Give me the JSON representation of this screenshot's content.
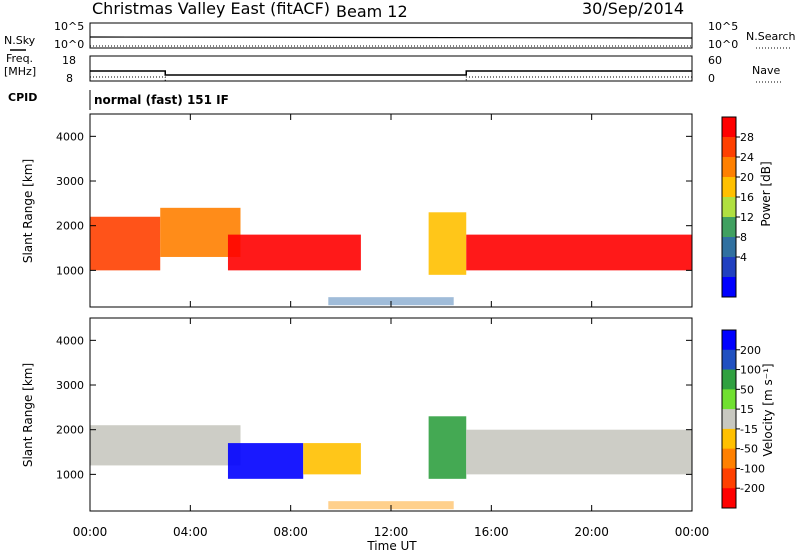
{
  "header": {
    "title": "Christmas Valley East (fitACF)",
    "beam": "Beam 12",
    "date": "30/Sep/2014"
  },
  "strips": {
    "nsky_label": "N.Sky",
    "nsky_ticks": [
      "10^5",
      "10^0"
    ],
    "nsearch_label": "N.Search",
    "nsearch_ticks": [
      "10^5",
      "10^0"
    ],
    "freq_label": "Freq.",
    "freq_unit": "[MHz]",
    "freq_ticks": [
      "18",
      "8"
    ],
    "nave_label": "Nave",
    "nave_ticks": [
      "60",
      "0"
    ],
    "cpid_label": "CPID",
    "cpid_value": "normal (fast) 151 IF"
  },
  "power_panel": {
    "ylabel": "Slant Range [km]",
    "yticks": [
      "4000",
      "3000",
      "2000",
      "1000"
    ],
    "colorbar_label": "Power [dB]",
    "colorbar_ticks": [
      "28",
      "24",
      "20",
      "16",
      "12",
      "8",
      "4"
    ],
    "colorbar_colors": [
      "#ff0000",
      "#ff4000",
      "#ff8000",
      "#ffc000",
      "#b0e040",
      "#40a060",
      "#3070a0",
      "#2040c0",
      "#0000ff"
    ]
  },
  "velocity_panel": {
    "ylabel": "Slant Range [km]",
    "yticks": [
      "4000",
      "3000",
      "2000",
      "1000"
    ],
    "colorbar_label": "Velocity [m s⁻¹]",
    "colorbar_ticks": [
      "200",
      "100",
      "50",
      "15",
      "-15",
      "-50",
      "-100",
      "-200"
    ],
    "colorbar_colors": [
      "#0000ff",
      "#2050c0",
      "#30a040",
      "#70e030",
      "#c8c8c0",
      "#ffc000",
      "#ff8000",
      "#ff4000",
      "#ff0000"
    ]
  },
  "x_axis": {
    "label": "Time UT",
    "ticks": [
      "00:00",
      "04:00",
      "08:00",
      "12:00",
      "16:00",
      "20:00",
      "00:00"
    ]
  },
  "chart_data": {
    "type": "heatmap",
    "x_range_hours": [
      0,
      24
    ],
    "y_range_km": [
      180,
      4500
    ],
    "freq_mhz_segments": [
      {
        "t_start": 0.0,
        "t_end": 3.0,
        "freq": 12.0
      },
      {
        "t_start": 3.0,
        "t_end": 15.0,
        "freq": 10.4
      },
      {
        "t_start": 15.0,
        "t_end": 24.0,
        "freq": 12.0
      }
    ],
    "power_echo_regions": [
      {
        "t_start": 0.0,
        "t_end": 2.8,
        "r_low": 1000,
        "r_high": 2200,
        "power_db": 26
      },
      {
        "t_start": 2.8,
        "t_end": 6.0,
        "r_low": 1300,
        "r_high": 2400,
        "power_db": 20
      },
      {
        "t_start": 5.5,
        "t_end": 10.8,
        "r_low": 1000,
        "r_high": 1800,
        "power_db": 28
      },
      {
        "t_start": 13.5,
        "t_end": 15.0,
        "r_low": 900,
        "r_high": 2300,
        "power_db": 18
      },
      {
        "t_start": 15.0,
        "t_end": 24.0,
        "r_low": 1000,
        "r_high": 1800,
        "power_db": 28
      }
    ],
    "velocity_echo_regions": [
      {
        "t_start": 0.0,
        "t_end": 6.0,
        "r_low": 1200,
        "r_high": 2100,
        "velocity": 0
      },
      {
        "t_start": 5.5,
        "t_end": 8.5,
        "r_low": 900,
        "r_high": 1700,
        "velocity": 200
      },
      {
        "t_start": 8.5,
        "t_end": 10.8,
        "r_low": 1000,
        "r_high": 1700,
        "velocity": -50
      },
      {
        "t_start": 13.5,
        "t_end": 15.0,
        "r_low": 900,
        "r_high": 2300,
        "velocity": 50
      },
      {
        "t_start": 15.0,
        "t_end": 24.0,
        "r_low": 1000,
        "r_high": 2000,
        "velocity": 0
      }
    ]
  }
}
